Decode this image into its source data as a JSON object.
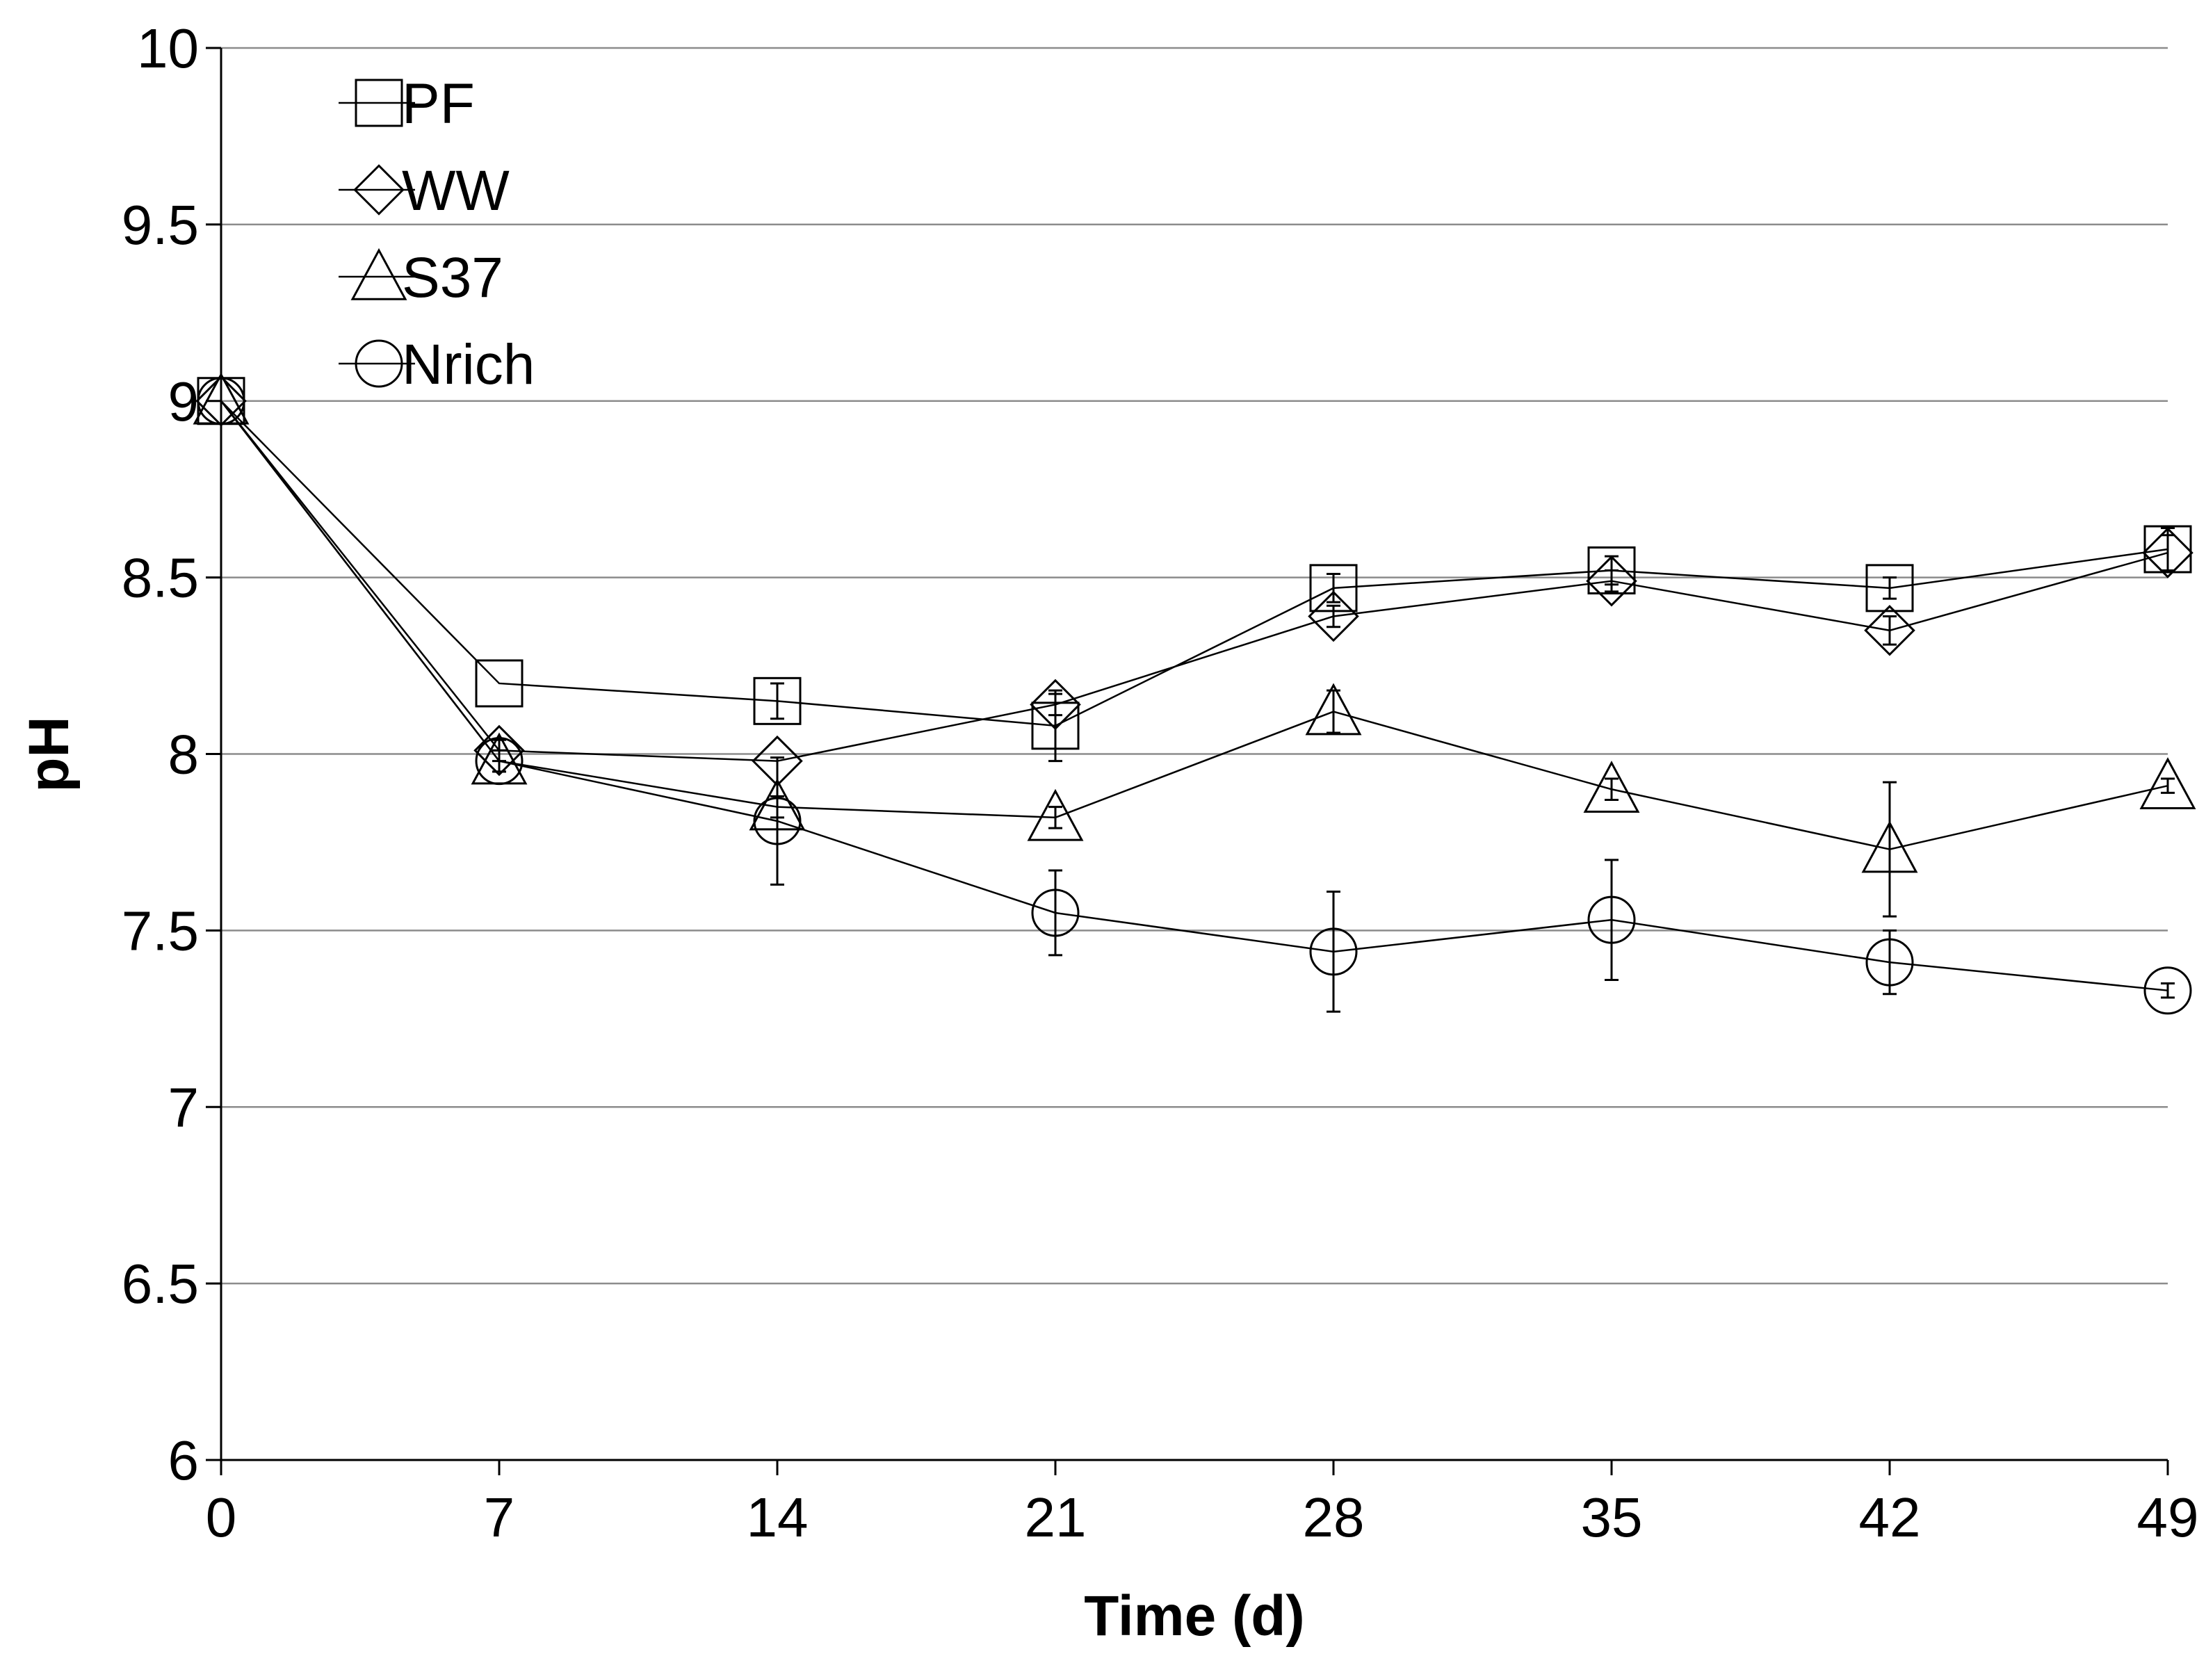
{
  "chart_data": {
    "type": "line",
    "title": "",
    "xlabel": "Time (d)",
    "ylabel": "pH",
    "x": [
      0,
      7,
      14,
      21,
      28,
      35,
      42,
      49
    ],
    "x_tick_labels": [
      "0",
      "7",
      "14",
      "21",
      "28",
      "35",
      "42",
      "49"
    ],
    "xlim": [
      0,
      49
    ],
    "ylim": [
      6,
      10
    ],
    "y_ticks": [
      6,
      6.5,
      7,
      7.5,
      8,
      8.5,
      9,
      9.5,
      10
    ],
    "y_tick_labels": [
      "6",
      "6.5",
      "7",
      "7.5",
      "8",
      "8.5",
      "9",
      "9.5",
      "10"
    ],
    "grid": "horizontal",
    "legend_position": "top-left",
    "series": [
      {
        "name": "PF",
        "marker": "square",
        "values": [
          9.0,
          8.2,
          8.15,
          8.08,
          8.47,
          8.52,
          8.47,
          8.58
        ],
        "errors": [
          0.0,
          0.0,
          0.05,
          0.1,
          0.04,
          0.04,
          0.03,
          0.06
        ]
      },
      {
        "name": "WW",
        "marker": "diamond",
        "values": [
          9.0,
          8.01,
          7.98,
          8.14,
          8.39,
          8.49,
          8.35,
          8.57
        ],
        "errors": [
          0.0,
          0.03,
          0.0,
          0.03,
          0.03,
          0.03,
          0.04,
          0.05
        ]
      },
      {
        "name": "S37",
        "marker": "triangle",
        "values": [
          9.0,
          7.98,
          7.85,
          7.82,
          8.12,
          7.9,
          7.73,
          7.91
        ],
        "errors": [
          0.0,
          0.03,
          0.03,
          0.03,
          0.06,
          0.03,
          0.19,
          0.02
        ]
      },
      {
        "name": "Nrich",
        "marker": "circle",
        "values": [
          9.0,
          7.98,
          7.81,
          7.55,
          7.44,
          7.53,
          7.41,
          7.33
        ],
        "errors": [
          0.0,
          0.03,
          0.18,
          0.12,
          0.17,
          0.17,
          0.09,
          0.02
        ]
      }
    ]
  }
}
